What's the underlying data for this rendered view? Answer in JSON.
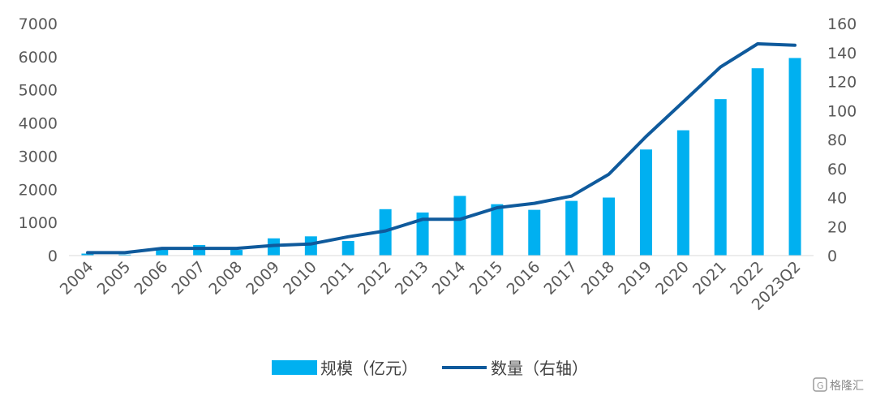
{
  "chart_data": {
    "type": "bar",
    "title": "",
    "categories": [
      "2004",
      "2005",
      "2006",
      "2007",
      "2008",
      "2009",
      "2010",
      "2011",
      "2012",
      "2013",
      "2014",
      "2015",
      "2016",
      "2017",
      "2018",
      "2019",
      "2020",
      "2021",
      "2022",
      "2023Q2"
    ],
    "series": [
      {
        "name": "规模（亿元）",
        "type": "bar",
        "axis": "left",
        "color": "#00B0F0",
        "values": [
          60,
          30,
          200,
          320,
          170,
          520,
          580,
          440,
          1400,
          1300,
          1800,
          1550,
          1380,
          1650,
          1750,
          3200,
          3780,
          4720,
          5650,
          5960
        ]
      },
      {
        "name": "数量（右轴）",
        "type": "line",
        "axis": "right",
        "color": "#0F5A9C",
        "values": [
          2,
          2,
          5,
          5,
          5,
          7,
          8,
          13,
          17,
          25,
          25,
          33,
          36,
          41,
          56,
          82,
          106,
          130,
          146,
          145
        ]
      }
    ],
    "y_left": {
      "min": 0,
      "max": 7000,
      "ticks": [
        0,
        1000,
        2000,
        3000,
        4000,
        5000,
        6000,
        7000
      ]
    },
    "y_right": {
      "min": 0,
      "max": 160,
      "ticks": [
        0,
        20,
        40,
        60,
        80,
        100,
        120,
        140,
        160
      ]
    },
    "grid": false,
    "legend_position": "bottom"
  },
  "legend": {
    "bar_label": "规模（亿元）",
    "line_label": "数量（右轴）"
  },
  "watermark": "格隆汇"
}
